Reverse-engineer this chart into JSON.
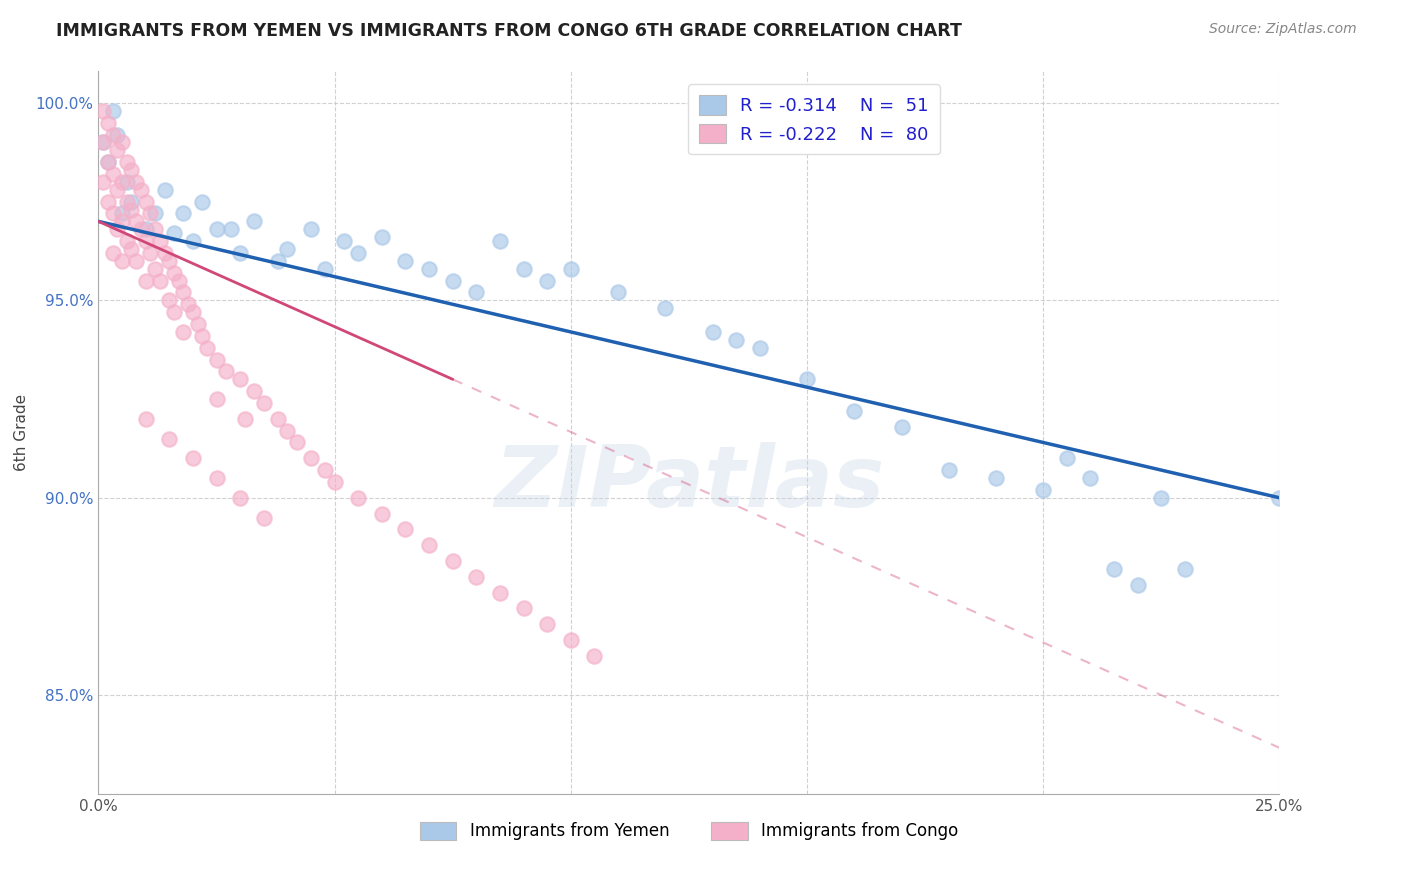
{
  "title": "IMMIGRANTS FROM YEMEN VS IMMIGRANTS FROM CONGO 6TH GRADE CORRELATION CHART",
  "source": "Source: ZipAtlas.com",
  "ylabel": "6th Grade",
  "xlim": [
    0.0,
    0.25
  ],
  "ylim": [
    0.825,
    1.008
  ],
  "xticks": [
    0.0,
    0.05,
    0.1,
    0.15,
    0.2,
    0.25
  ],
  "xtick_labels": [
    "0.0%",
    "",
    "",
    "",
    "",
    "25.0%"
  ],
  "yticks": [
    0.85,
    0.9,
    0.95,
    1.0
  ],
  "ytick_labels": [
    "85.0%",
    "90.0%",
    "95.0%",
    "100.0%"
  ],
  "legend_r_yemen": "-0.314",
  "legend_n_yemen": "51",
  "legend_r_congo": "-0.222",
  "legend_n_congo": "80",
  "yemen_color": "#aac8e8",
  "congo_color": "#f4b0c8",
  "yemen_line_color": "#2060b0",
  "congo_line_color": "#d04878",
  "watermark": "ZIPatlas",
  "blue_x": [
    0.001,
    0.002,
    0.003,
    0.004,
    0.005,
    0.006,
    0.007,
    0.01,
    0.012,
    0.014,
    0.016,
    0.018,
    0.02,
    0.022,
    0.025,
    0.028,
    0.03,
    0.033,
    0.038,
    0.04,
    0.045,
    0.048,
    0.052,
    0.055,
    0.06,
    0.065,
    0.07,
    0.075,
    0.08,
    0.085,
    0.09,
    0.095,
    0.1,
    0.11,
    0.12,
    0.13,
    0.135,
    0.14,
    0.15,
    0.16,
    0.17,
    0.18,
    0.19,
    0.2,
    0.205,
    0.21,
    0.215,
    0.22,
    0.225,
    0.23,
    0.25
  ],
  "blue_y": [
    0.99,
    0.985,
    0.998,
    0.992,
    0.972,
    0.98,
    0.975,
    0.968,
    0.972,
    0.978,
    0.967,
    0.972,
    0.965,
    0.975,
    0.968,
    0.968,
    0.962,
    0.97,
    0.96,
    0.963,
    0.968,
    0.958,
    0.965,
    0.962,
    0.966,
    0.96,
    0.958,
    0.955,
    0.952,
    0.965,
    0.958,
    0.955,
    0.958,
    0.952,
    0.948,
    0.942,
    0.94,
    0.938,
    0.93,
    0.922,
    0.918,
    0.907,
    0.905,
    0.902,
    0.91,
    0.905,
    0.882,
    0.878,
    0.9,
    0.882,
    0.9
  ],
  "pink_x": [
    0.001,
    0.001,
    0.001,
    0.002,
    0.002,
    0.002,
    0.003,
    0.003,
    0.003,
    0.003,
    0.004,
    0.004,
    0.004,
    0.005,
    0.005,
    0.005,
    0.005,
    0.006,
    0.006,
    0.006,
    0.007,
    0.007,
    0.007,
    0.008,
    0.008,
    0.008,
    0.009,
    0.009,
    0.01,
    0.01,
    0.01,
    0.011,
    0.011,
    0.012,
    0.012,
    0.013,
    0.013,
    0.014,
    0.015,
    0.015,
    0.016,
    0.016,
    0.017,
    0.018,
    0.018,
    0.019,
    0.02,
    0.021,
    0.022,
    0.023,
    0.025,
    0.025,
    0.027,
    0.03,
    0.031,
    0.033,
    0.035,
    0.038,
    0.04,
    0.042,
    0.045,
    0.048,
    0.05,
    0.055,
    0.06,
    0.065,
    0.07,
    0.075,
    0.08,
    0.085,
    0.09,
    0.095,
    0.1,
    0.105,
    0.01,
    0.015,
    0.02,
    0.025,
    0.03,
    0.035
  ],
  "pink_y": [
    0.998,
    0.99,
    0.98,
    0.995,
    0.985,
    0.975,
    0.992,
    0.982,
    0.972,
    0.962,
    0.988,
    0.978,
    0.968,
    0.99,
    0.98,
    0.97,
    0.96,
    0.985,
    0.975,
    0.965,
    0.983,
    0.973,
    0.963,
    0.98,
    0.97,
    0.96,
    0.978,
    0.968,
    0.975,
    0.965,
    0.955,
    0.972,
    0.962,
    0.968,
    0.958,
    0.965,
    0.955,
    0.962,
    0.96,
    0.95,
    0.957,
    0.947,
    0.955,
    0.952,
    0.942,
    0.949,
    0.947,
    0.944,
    0.941,
    0.938,
    0.935,
    0.925,
    0.932,
    0.93,
    0.92,
    0.927,
    0.924,
    0.92,
    0.917,
    0.914,
    0.91,
    0.907,
    0.904,
    0.9,
    0.896,
    0.892,
    0.888,
    0.884,
    0.88,
    0.876,
    0.872,
    0.868,
    0.864,
    0.86,
    0.92,
    0.915,
    0.91,
    0.905,
    0.9,
    0.895
  ]
}
